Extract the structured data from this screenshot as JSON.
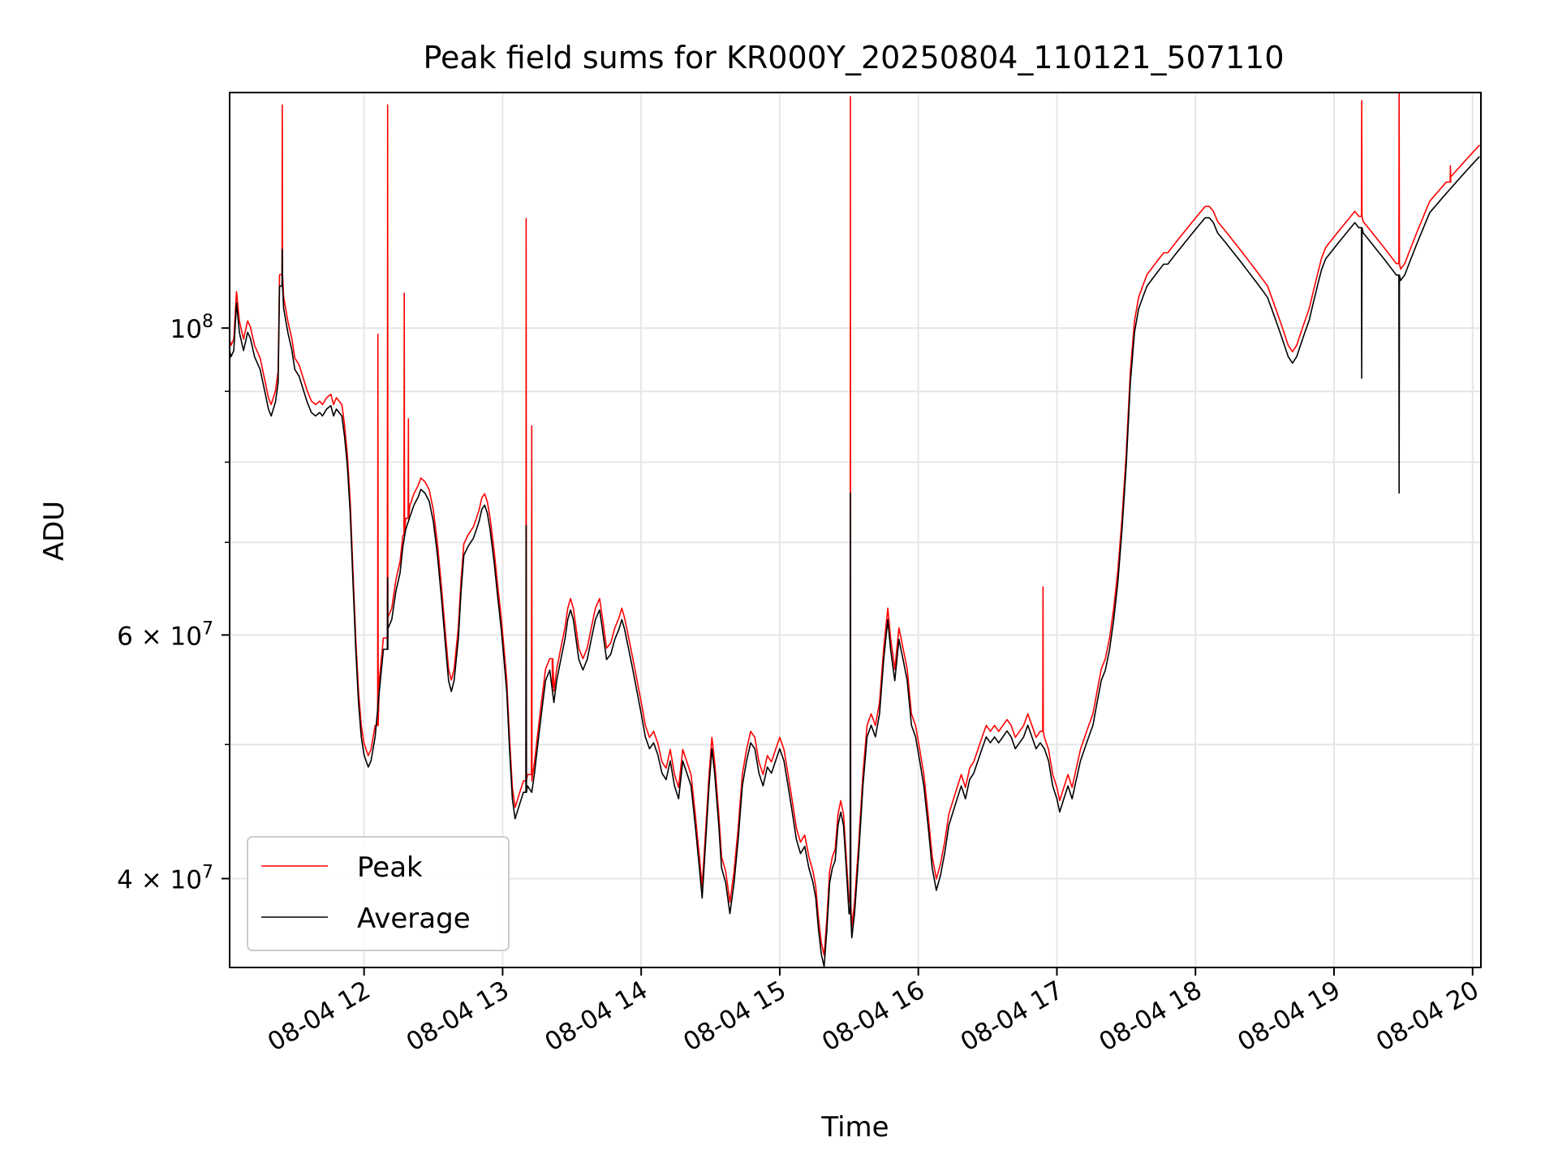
{
  "chart_data": {
    "type": "line",
    "title": "Peak field sums for KR000Y_20250804_110121_507110",
    "xlabel": "Time",
    "ylabel": "ADU",
    "yscale": "log",
    "xlim": [
      11.03,
      20.06
    ],
    "ylim": [
      34500000,
      148000000
    ],
    "grid": true,
    "legend_position": "lower-left",
    "x_unit": "hour of 2025-08-04",
    "x_ticks": [
      {
        "value": 12,
        "label": "08-04 12"
      },
      {
        "value": 13,
        "label": "08-04 13"
      },
      {
        "value": 14,
        "label": "08-04 14"
      },
      {
        "value": 15,
        "label": "08-04 15"
      },
      {
        "value": 16,
        "label": "08-04 16"
      },
      {
        "value": 17,
        "label": "08-04 17"
      },
      {
        "value": 18,
        "label": "08-04 18"
      },
      {
        "value": 19,
        "label": "08-04 19"
      },
      {
        "value": 20,
        "label": "08-04 20"
      }
    ],
    "y_major_ticks": [
      {
        "value": 40000000,
        "label": "4 × 10",
        "exp": "7"
      },
      {
        "value": 60000000,
        "label": "6 × 10",
        "exp": "7"
      },
      {
        "value": 100000000,
        "label": "10",
        "exp": "8"
      }
    ],
    "y_minor_values": [
      50000000,
      70000000,
      80000000,
      90000000
    ],
    "base": [
      [
        11.03,
        97
      ],
      [
        11.04,
        96
      ],
      [
        11.06,
        97
      ],
      [
        11.08,
        105
      ],
      [
        11.1,
        100
      ],
      [
        11.13,
        97
      ],
      [
        11.16,
        100
      ],
      [
        11.18,
        99
      ],
      [
        11.21,
        96
      ],
      [
        11.25,
        94
      ],
      [
        11.29,
        90
      ],
      [
        11.31,
        88
      ],
      [
        11.33,
        87
      ],
      [
        11.36,
        89
      ],
      [
        11.38,
        92
      ],
      [
        11.39,
        108
      ],
      [
        11.42,
        104
      ],
      [
        11.45,
        100
      ],
      [
        11.48,
        97
      ],
      [
        11.5,
        94
      ],
      [
        11.53,
        93
      ],
      [
        11.56,
        91
      ],
      [
        11.59,
        89
      ],
      [
        11.62,
        87.5
      ],
      [
        11.65,
        87
      ],
      [
        11.68,
        87.5
      ],
      [
        11.7,
        87
      ],
      [
        11.73,
        88
      ],
      [
        11.76,
        88.5
      ],
      [
        11.78,
        87
      ],
      [
        11.8,
        88
      ],
      [
        11.84,
        87
      ],
      [
        11.86,
        84
      ],
      [
        11.88,
        80
      ],
      [
        11.9,
        74
      ],
      [
        11.92,
        66
      ],
      [
        11.94,
        59
      ],
      [
        11.96,
        54
      ],
      [
        11.98,
        51
      ],
      [
        12.0,
        49.5
      ],
      [
        12.03,
        48.5
      ],
      [
        12.05,
        49
      ],
      [
        12.08,
        51
      ],
      [
        12.11,
        55
      ],
      [
        12.14,
        59
      ],
      [
        12.17,
        61
      ],
      [
        12.2,
        62
      ],
      [
        12.23,
        65
      ],
      [
        12.26,
        67
      ],
      [
        12.28,
        70
      ],
      [
        12.3,
        72
      ],
      [
        12.33,
        73.5
      ],
      [
        12.36,
        75
      ],
      [
        12.39,
        76
      ],
      [
        12.41,
        77
      ],
      [
        12.44,
        76.5
      ],
      [
        12.47,
        75.5
      ],
      [
        12.5,
        73
      ],
      [
        12.53,
        69
      ],
      [
        12.56,
        64
      ],
      [
        12.59,
        59
      ],
      [
        12.61,
        56
      ],
      [
        12.63,
        55
      ],
      [
        12.65,
        56
      ],
      [
        12.68,
        60
      ],
      [
        12.7,
        65
      ],
      [
        12.72,
        69
      ],
      [
        12.75,
        70
      ],
      [
        12.77,
        70.5
      ],
      [
        12.79,
        71
      ],
      [
        12.81,
        72
      ],
      [
        12.83,
        73
      ],
      [
        12.85,
        74.5
      ],
      [
        12.87,
        75
      ],
      [
        12.89,
        74
      ],
      [
        12.91,
        72
      ],
      [
        12.94,
        68
      ],
      [
        12.96,
        65
      ],
      [
        12.99,
        61
      ],
      [
        13.01,
        58
      ],
      [
        13.03,
        55
      ],
      [
        13.05,
        50
      ],
      [
        13.07,
        46
      ],
      [
        13.09,
        44.5
      ],
      [
        13.12,
        45.5
      ],
      [
        13.15,
        46.5
      ],
      [
        13.18,
        47
      ],
      [
        13.21,
        46.5
      ],
      [
        13.23,
        48
      ],
      [
        13.25,
        50
      ],
      [
        13.27,
        52
      ],
      [
        13.29,
        54
      ],
      [
        13.31,
        56
      ],
      [
        13.34,
        57
      ],
      [
        13.37,
        54
      ],
      [
        13.39,
        56
      ],
      [
        13.42,
        58
      ],
      [
        13.45,
        60
      ],
      [
        13.47,
        62
      ],
      [
        13.49,
        63
      ],
      [
        13.51,
        62
      ],
      [
        13.53,
        60
      ],
      [
        13.55,
        58
      ],
      [
        13.58,
        57
      ],
      [
        13.61,
        58
      ],
      [
        13.64,
        60
      ],
      [
        13.67,
        62
      ],
      [
        13.7,
        63
      ],
      [
        13.72,
        61
      ],
      [
        13.75,
        58
      ],
      [
        13.78,
        58.5
      ],
      [
        13.81,
        60
      ],
      [
        13.84,
        61
      ],
      [
        13.86,
        62
      ],
      [
        13.88,
        61
      ],
      [
        13.91,
        59
      ],
      [
        13.94,
        57
      ],
      [
        13.97,
        55
      ],
      [
        14.0,
        53
      ],
      [
        14.03,
        51
      ],
      [
        14.06,
        50
      ],
      [
        14.09,
        50.5
      ],
      [
        14.12,
        49.5
      ],
      [
        14.15,
        48
      ],
      [
        14.18,
        47.5
      ],
      [
        14.21,
        49
      ],
      [
        14.24,
        47
      ],
      [
        14.27,
        46
      ],
      [
        14.3,
        49
      ],
      [
        14.33,
        48
      ],
      [
        14.36,
        47
      ],
      [
        14.39,
        44
      ],
      [
        14.42,
        41
      ],
      [
        14.44,
        39
      ],
      [
        14.46,
        42
      ],
      [
        14.49,
        47
      ],
      [
        14.51,
        50
      ],
      [
        14.53,
        48
      ],
      [
        14.56,
        44
      ],
      [
        14.58,
        41
      ],
      [
        14.61,
        40
      ],
      [
        14.64,
        38
      ],
      [
        14.67,
        40
      ],
      [
        14.7,
        43
      ],
      [
        14.73,
        47
      ],
      [
        14.76,
        49
      ],
      [
        14.79,
        50.5
      ],
      [
        14.82,
        50
      ],
      [
        14.85,
        48
      ],
      [
        14.88,
        47
      ],
      [
        14.91,
        48.5
      ],
      [
        14.94,
        48
      ],
      [
        14.97,
        49
      ],
      [
        15.0,
        50
      ],
      [
        15.03,
        49
      ],
      [
        15.06,
        47
      ],
      [
        15.09,
        45
      ],
      [
        15.12,
        43
      ],
      [
        15.15,
        42
      ],
      [
        15.18,
        42.5
      ],
      [
        15.21,
        41
      ],
      [
        15.24,
        40
      ],
      [
        15.26,
        39
      ],
      [
        15.28,
        37
      ],
      [
        15.3,
        35.5
      ],
      [
        15.32,
        34.8
      ],
      [
        15.34,
        37
      ],
      [
        15.36,
        40
      ],
      [
        15.38,
        41
      ],
      [
        15.4,
        41.5
      ],
      [
        15.42,
        44
      ],
      [
        15.44,
        45
      ],
      [
        15.46,
        44
      ],
      [
        15.48,
        41
      ],
      [
        15.5,
        38
      ],
      [
        15.52,
        36.5
      ],
      [
        15.54,
        38
      ],
      [
        15.57,
        42
      ],
      [
        15.6,
        47
      ],
      [
        15.63,
        51
      ],
      [
        15.66,
        52
      ],
      [
        15.69,
        51
      ],
      [
        15.72,
        53
      ],
      [
        15.75,
        58
      ],
      [
        15.78,
        62
      ],
      [
        15.8,
        59
      ],
      [
        15.83,
        56
      ],
      [
        15.86,
        60
      ],
      [
        15.89,
        58
      ],
      [
        15.92,
        56
      ],
      [
        15.95,
        52
      ],
      [
        15.98,
        51
      ],
      [
        16.01,
        49
      ],
      [
        16.04,
        47
      ],
      [
        16.07,
        44
      ],
      [
        16.1,
        41
      ],
      [
        16.13,
        39.5
      ],
      [
        16.16,
        40.5
      ],
      [
        16.19,
        42
      ],
      [
        16.22,
        44
      ],
      [
        16.25,
        45
      ],
      [
        16.28,
        46
      ],
      [
        16.31,
        47
      ],
      [
        16.34,
        46
      ],
      [
        16.37,
        47.5
      ],
      [
        16.4,
        48
      ],
      [
        16.43,
        49
      ],
      [
        16.46,
        50
      ],
      [
        16.49,
        51
      ],
      [
        16.52,
        50.5
      ],
      [
        16.55,
        51
      ],
      [
        16.58,
        50.5
      ],
      [
        16.61,
        51
      ],
      [
        16.64,
        51.5
      ],
      [
        16.67,
        51
      ],
      [
        16.7,
        50
      ],
      [
        16.73,
        50.5
      ],
      [
        16.76,
        51
      ],
      [
        16.79,
        52
      ],
      [
        16.82,
        51
      ],
      [
        16.85,
        50
      ],
      [
        16.88,
        50.5
      ],
      [
        16.91,
        50
      ],
      [
        16.94,
        49
      ],
      [
        16.97,
        47
      ],
      [
        17.0,
        46
      ],
      [
        17.02,
        45
      ],
      [
        17.05,
        46
      ],
      [
        17.08,
        47
      ],
      [
        17.11,
        46
      ],
      [
        17.14,
        47.5
      ],
      [
        17.17,
        49
      ],
      [
        17.2,
        50
      ],
      [
        17.23,
        51
      ],
      [
        17.26,
        52
      ],
      [
        17.29,
        54
      ],
      [
        17.32,
        56
      ],
      [
        17.35,
        57
      ],
      [
        17.38,
        59
      ],
      [
        17.41,
        62
      ],
      [
        17.44,
        66
      ],
      [
        17.47,
        72
      ],
      [
        17.5,
        80
      ],
      [
        17.53,
        92
      ],
      [
        17.56,
        100
      ],
      [
        17.59,
        104
      ],
      [
        17.62,
        106
      ],
      [
        17.65,
        108
      ],
      [
        17.68,
        109
      ],
      [
        17.71,
        110
      ],
      [
        17.74,
        111
      ],
      [
        17.77,
        112
      ],
      [
        17.8,
        112
      ],
      [
        17.83,
        113
      ],
      [
        17.86,
        114
      ],
      [
        17.89,
        115
      ],
      [
        17.92,
        116
      ],
      [
        17.95,
        117
      ],
      [
        17.98,
        118
      ],
      [
        18.01,
        119
      ],
      [
        18.04,
        120
      ],
      [
        18.07,
        121
      ],
      [
        18.1,
        121
      ],
      [
        18.13,
        120
      ],
      [
        18.16,
        118
      ],
      [
        18.19,
        117
      ],
      [
        18.22,
        116
      ],
      [
        18.25,
        115
      ],
      [
        18.28,
        114
      ],
      [
        18.31,
        113
      ],
      [
        18.34,
        112
      ],
      [
        18.37,
        111
      ],
      [
        18.4,
        110
      ],
      [
        18.43,
        109
      ],
      [
        18.46,
        108
      ],
      [
        18.49,
        107
      ],
      [
        18.52,
        106
      ],
      [
        18.55,
        104
      ],
      [
        18.58,
        102
      ],
      [
        18.61,
        100
      ],
      [
        18.64,
        98
      ],
      [
        18.67,
        96
      ],
      [
        18.7,
        95
      ],
      [
        18.73,
        96
      ],
      [
        18.76,
        98
      ],
      [
        18.79,
        100
      ],
      [
        18.82,
        102
      ],
      [
        18.85,
        105
      ],
      [
        18.88,
        108
      ],
      [
        18.91,
        111
      ],
      [
        18.94,
        113
      ],
      [
        18.97,
        114
      ],
      [
        19.0,
        115
      ],
      [
        19.03,
        116
      ],
      [
        19.06,
        117
      ],
      [
        19.09,
        118
      ],
      [
        19.12,
        119
      ],
      [
        19.15,
        120
      ],
      [
        19.18,
        119
      ],
      [
        19.21,
        118
      ],
      [
        19.24,
        117
      ],
      [
        19.27,
        116
      ],
      [
        19.3,
        115
      ],
      [
        19.33,
        114
      ],
      [
        19.36,
        113
      ],
      [
        19.39,
        112
      ],
      [
        19.42,
        111
      ],
      [
        19.45,
        110
      ],
      [
        19.48,
        109
      ],
      [
        19.51,
        110
      ],
      [
        19.54,
        112
      ],
      [
        19.57,
        114
      ],
      [
        19.6,
        116
      ],
      [
        19.63,
        118
      ],
      [
        19.66,
        120
      ],
      [
        19.69,
        122
      ],
      [
        19.72,
        123
      ],
      [
        19.75,
        124
      ],
      [
        19.78,
        125
      ],
      [
        19.81,
        126
      ],
      [
        19.84,
        127
      ],
      [
        19.87,
        128
      ],
      [
        19.9,
        129
      ],
      [
        19.93,
        130
      ],
      [
        19.96,
        131
      ],
      [
        19.99,
        132
      ],
      [
        20.02,
        133
      ],
      [
        20.05,
        134
      ]
    ],
    "series": [
      {
        "name": "Peak",
        "color": "#ff0000"
      },
      {
        "name": "Average",
        "color": "#000000"
      }
    ]
  }
}
